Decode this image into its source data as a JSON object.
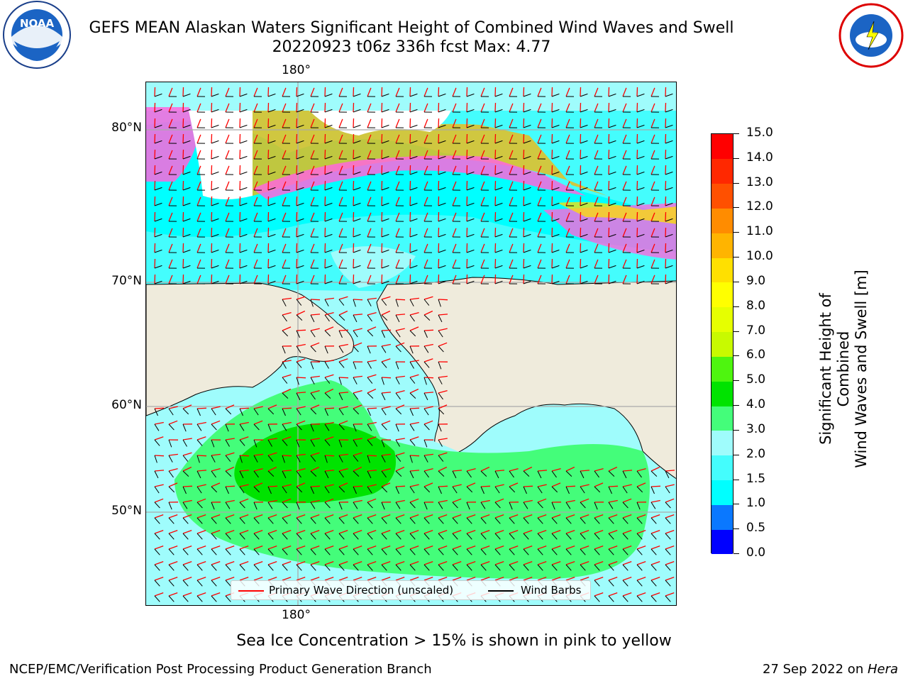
{
  "header": {
    "title_line1": "GEFS MEAN Alaskan Waters Significant Height of Combined Wind Waves and Swell",
    "title_line2": "20220923 t06z 336h fcst   Max: 4.77"
  },
  "map": {
    "lon_label_top": "180°",
    "lon_label_bottom": "180°",
    "lat_labels": [
      "80°N",
      "70°N",
      "60°N",
      "50°N"
    ],
    "ocean_color": "#9ffcfc",
    "land_color": "#efebdc"
  },
  "colorbar": {
    "title_line1": "Significant Height of Combined",
    "title_line2": "Wind Waves and Swell [m]",
    "ticks": [
      "0.0",
      "0.5",
      "1.0",
      "1.5",
      "2.0",
      "3.0",
      "4.0",
      "5.0",
      "6.0",
      "7.0",
      "8.0",
      "9.0",
      "10.0",
      "11.0",
      "12.0",
      "13.0",
      "14.0",
      "15.0"
    ],
    "colors": [
      "#0000ff",
      "#0a78ff",
      "#00ffff",
      "#44fdfd",
      "#9ffcfc",
      "#44fd7a",
      "#00e300",
      "#4ef50f",
      "#c8fa00",
      "#e6ff00",
      "#ffff00",
      "#ffe000",
      "#ffb400",
      "#ff8c00",
      "#ff5000",
      "#ff2800",
      "#ff0000"
    ]
  },
  "legend": {
    "wave_direction_label": "Primary Wave Direction (unscaled)",
    "wave_direction_color": "#ff0000",
    "wind_barbs_label": "Wind Barbs",
    "wind_barbs_color": "#000000"
  },
  "footer": {
    "note": "Sea Ice Concentration > 15% is shown in pink to yellow",
    "credit": "NCEP/EMC/Verification Post Processing Product Generation Branch",
    "date_text": "27 Sep 2022 on ",
    "system": "Hera"
  }
}
